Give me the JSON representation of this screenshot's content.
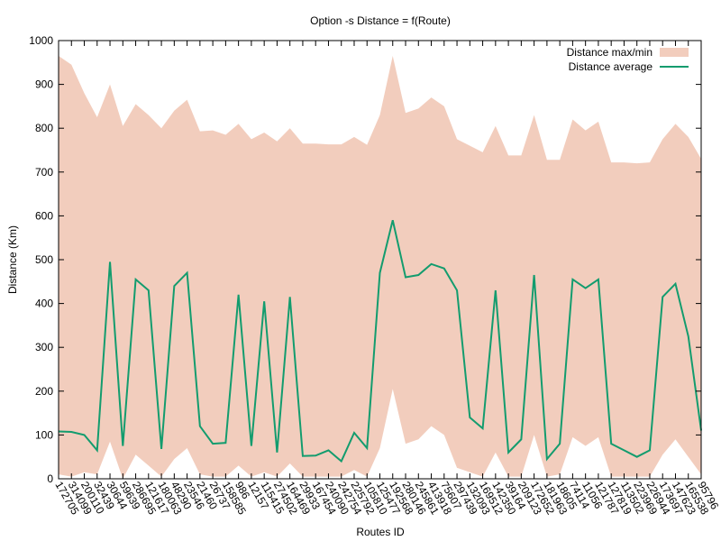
{
  "chart_data": {
    "type": "range-line",
    "title": "Option -s Distance = f(Route)",
    "x_label": "Routes ID",
    "y_label": "Distance (Km)",
    "categories": [
      "172705",
      "314099",
      "200110",
      "32439",
      "30644",
      "59639",
      "286695",
      "121617",
      "180063",
      "48290",
      "23546",
      "21460",
      "26737",
      "158585",
      "986",
      "12157",
      "115415",
      "274502",
      "164469",
      "29933",
      "167454",
      "240090",
      "242754",
      "225792",
      "105810",
      "125477",
      "192568",
      "280146",
      "245861",
      "413918",
      "75607",
      "297439",
      "132093",
      "169512",
      "142350",
      "39164",
      "209123",
      "172652",
      "181963",
      "18605",
      "74114",
      "11056",
      "121787",
      "127819",
      "113502",
      "223969",
      "226944",
      "173697",
      "147623",
      "165538",
      "95796"
    ],
    "series": [
      {
        "name": "Distance max/min",
        "color": "#f2cdbd",
        "max": [
          965,
          945,
          880,
          825,
          900,
          805,
          855,
          830,
          800,
          840,
          865,
          793,
          795,
          785,
          810,
          775,
          790,
          770,
          800,
          765,
          765,
          763,
          763,
          780,
          762,
          830,
          965,
          835,
          845,
          870,
          850,
          775,
          760,
          745,
          805,
          738,
          738,
          830,
          728,
          728,
          820,
          795,
          815,
          722,
          722,
          720,
          722,
          775,
          810,
          780,
          730
        ],
        "min": [
          10,
          5,
          15,
          10,
          85,
          0,
          55,
          30,
          5,
          45,
          70,
          10,
          5,
          5,
          30,
          5,
          15,
          5,
          35,
          5,
          5,
          5,
          5,
          20,
          5,
          70,
          205,
          80,
          90,
          120,
          100,
          25,
          15,
          5,
          60,
          5,
          5,
          100,
          5,
          10,
          95,
          75,
          95,
          5,
          5,
          5,
          5,
          55,
          90,
          50,
          10
        ]
      },
      {
        "name": "Distance average",
        "color": "#139c6e",
        "values": [
          108,
          107,
          100,
          65,
          495,
          75,
          455,
          430,
          68,
          440,
          470,
          120,
          80,
          82,
          420,
          75,
          405,
          60,
          415,
          52,
          53,
          65,
          40,
          105,
          70,
          470,
          590,
          460,
          465,
          490,
          480,
          430,
          140,
          115,
          430,
          60,
          90,
          465,
          45,
          80,
          455,
          435,
          455,
          80,
          65,
          50,
          65,
          415,
          445,
          325,
          110
        ]
      }
    ],
    "ylim": [
      0,
      1000
    ],
    "yticks": [
      0,
      100,
      200,
      300,
      400,
      500,
      600,
      700,
      800,
      900,
      1000
    ],
    "legend": "top-right"
  }
}
